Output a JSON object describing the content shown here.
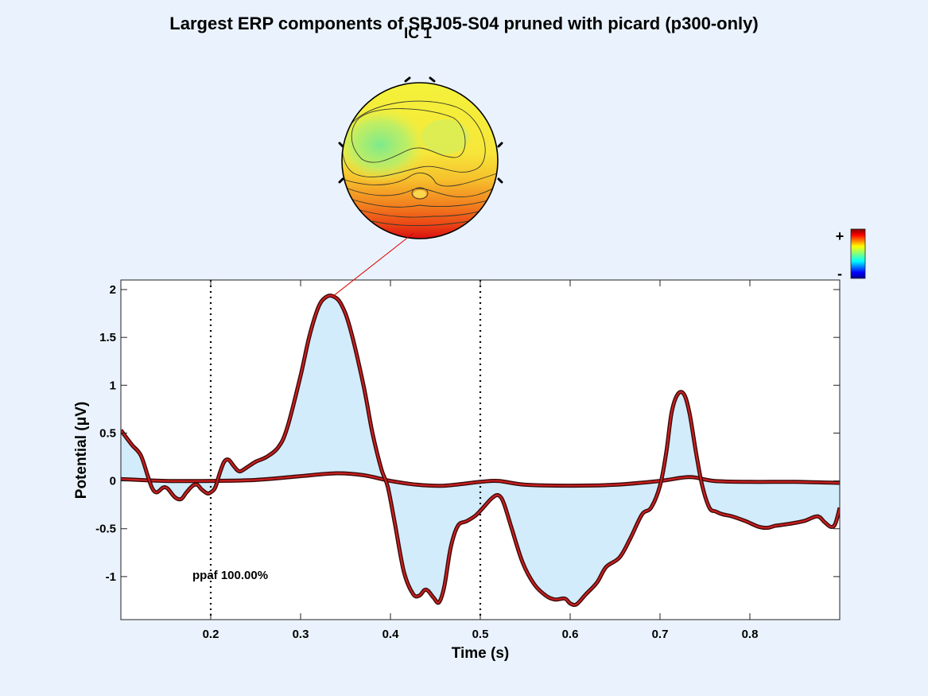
{
  "title": "Largest ERP components of SBJ05-S04 pruned with picard (p300-only)",
  "topomap": {
    "label": "IC 1"
  },
  "colorbar": {
    "plus": "+",
    "minus": "-"
  },
  "annotation": "ppaf 100.00%",
  "colors": {
    "background": "#eaf3fd",
    "fill": "#d2ecfb",
    "trace": "#cc1f1f",
    "outline": "#3a0a0a",
    "connector": "#e00000"
  },
  "chart_data": {
    "type": "area",
    "xlabel": "Time (s)",
    "ylabel": "Potential (μV)",
    "xlim": [
      0.1,
      0.9
    ],
    "ylim": [
      -1.45,
      2.1
    ],
    "xticks": [
      0.2,
      0.3,
      0.4,
      0.5,
      0.6,
      0.7,
      0.8
    ],
    "xtick_labels": [
      "0.2",
      "0.3",
      "0.4",
      "0.5",
      "0.6",
      "0.7",
      "0.8"
    ],
    "yticks": [
      -1,
      -0.5,
      0,
      0.5,
      1,
      1.5,
      2
    ],
    "ytick_labels": [
      "-1",
      "-0.5",
      "0",
      "0.5",
      "1",
      "1.5",
      "2"
    ],
    "vlines": [
      0.2,
      0.5
    ],
    "peak": {
      "x": 0.336,
      "y": 1.93
    },
    "series": [
      {
        "x": [
          0.1,
          0.112,
          0.122,
          0.13,
          0.135,
          0.14,
          0.147,
          0.152,
          0.16,
          0.167,
          0.173,
          0.18,
          0.185,
          0.19,
          0.196,
          0.2,
          0.205,
          0.21,
          0.215,
          0.22,
          0.226,
          0.232,
          0.24,
          0.25,
          0.262,
          0.275,
          0.285,
          0.3,
          0.31,
          0.32,
          0.328,
          0.336,
          0.345,
          0.355,
          0.37,
          0.38,
          0.39,
          0.397,
          0.405,
          0.415,
          0.425,
          0.432,
          0.438,
          0.442,
          0.448,
          0.454,
          0.46,
          0.467,
          0.475,
          0.485,
          0.495,
          0.505,
          0.513,
          0.52,
          0.526,
          0.535,
          0.547,
          0.56,
          0.573,
          0.583,
          0.594,
          0.6,
          0.607,
          0.617,
          0.63,
          0.64,
          0.655,
          0.667,
          0.68,
          0.69,
          0.7,
          0.707,
          0.713,
          0.72,
          0.727,
          0.733,
          0.74,
          0.747,
          0.755,
          0.762,
          0.77,
          0.78,
          0.795,
          0.81,
          0.82,
          0.828,
          0.843,
          0.86,
          0.875,
          0.883,
          0.89,
          0.895,
          0.9
        ],
        "values": [
          0.53,
          0.38,
          0.27,
          0.05,
          -0.08,
          -0.12,
          -0.07,
          -0.08,
          -0.17,
          -0.19,
          -0.12,
          -0.05,
          -0.04,
          -0.09,
          -0.13,
          -0.12,
          -0.07,
          0.08,
          0.2,
          0.22,
          0.15,
          0.1,
          0.14,
          0.2,
          0.25,
          0.35,
          0.55,
          1.1,
          1.52,
          1.82,
          1.92,
          1.93,
          1.85,
          1.6,
          1.0,
          0.5,
          0.12,
          -0.06,
          -0.45,
          -0.95,
          -1.18,
          -1.2,
          -1.14,
          -1.15,
          -1.22,
          -1.27,
          -1.1,
          -0.7,
          -0.47,
          -0.42,
          -0.36,
          -0.26,
          -0.18,
          -0.15,
          -0.23,
          -0.5,
          -0.85,
          -1.08,
          -1.2,
          -1.24,
          -1.23,
          -1.28,
          -1.29,
          -1.19,
          -1.06,
          -0.9,
          -0.8,
          -0.6,
          -0.35,
          -0.28,
          -0.05,
          0.3,
          0.72,
          0.91,
          0.9,
          0.7,
          0.3,
          -0.05,
          -0.28,
          -0.32,
          -0.35,
          -0.37,
          -0.42,
          -0.48,
          -0.49,
          -0.47,
          -0.45,
          -0.42,
          -0.37,
          -0.43,
          -0.48,
          -0.45,
          -0.28
        ]
      },
      {
        "x": [
          0.1,
          0.15,
          0.2,
          0.25,
          0.3,
          0.34,
          0.37,
          0.4,
          0.43,
          0.46,
          0.5,
          0.52,
          0.55,
          0.6,
          0.65,
          0.7,
          0.733,
          0.76,
          0.8,
          0.85,
          0.9
        ],
        "values": [
          0.02,
          0.0,
          0.0,
          0.01,
          0.05,
          0.08,
          0.06,
          0.0,
          -0.04,
          -0.05,
          -0.01,
          0.0,
          -0.04,
          -0.05,
          -0.04,
          0.0,
          0.04,
          0.0,
          -0.01,
          -0.01,
          -0.02
        ]
      }
    ]
  }
}
